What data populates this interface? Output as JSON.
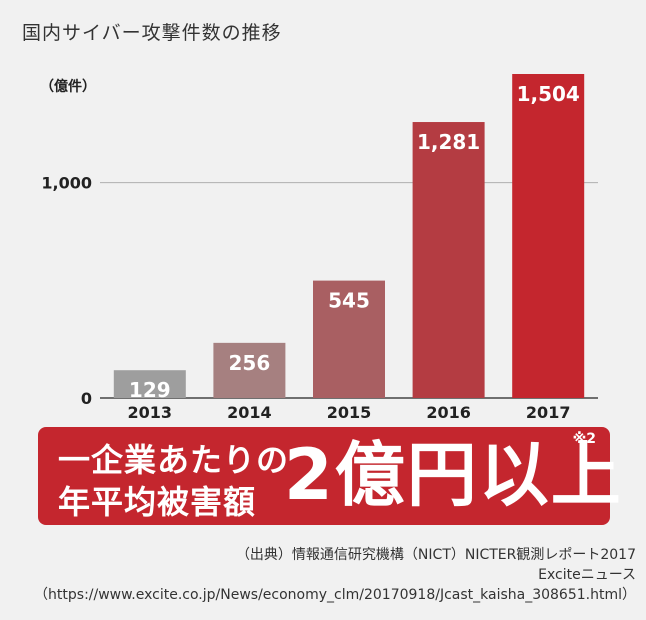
{
  "title": "国内サイバー攻撃件数の推移",
  "chart_data": {
    "type": "bar",
    "ylabel": "（億件）",
    "categories": [
      "2013",
      "2014",
      "2015",
      "2016",
      "2017"
    ],
    "values": [
      129,
      256,
      545,
      1281,
      1504
    ],
    "value_labels": [
      "129",
      "256",
      "545",
      "1,281",
      "1,504"
    ],
    "yticks": [
      0,
      1000
    ],
    "ytick_labels": [
      "0",
      "1,000"
    ],
    "ylim": [
      0,
      1504
    ],
    "bar_colors": [
      "#9e9e9e",
      "#a68080",
      "#a95f62",
      "#b43c42",
      "#c4262e"
    ],
    "gridline_color": "#b0b0b0"
  },
  "banner": {
    "line1": "一企業あたりの",
    "line2": "年平均被害額",
    "amount": "2億円以上",
    "note": "※2",
    "color": "#c4262e"
  },
  "source": {
    "line1": "（出典）情報通信研究機構（NICT）NICTER観測レポート2017",
    "line2": "Exciteニュース",
    "line3": "（https://www.excite.co.jp/News/economy_clm/20170918/Jcast_kaisha_308651.html）"
  }
}
